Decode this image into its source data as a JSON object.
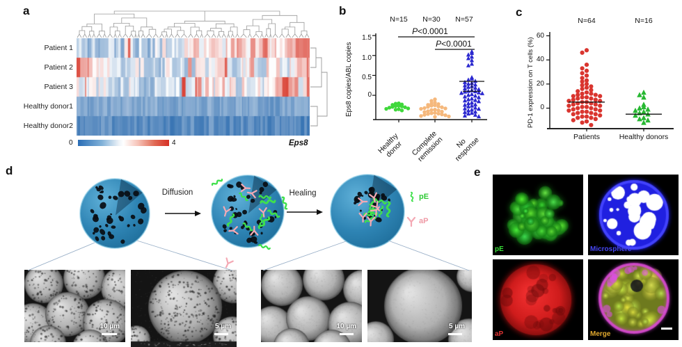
{
  "panels": {
    "a": "a",
    "b": "b",
    "c": "c",
    "d": "d",
    "e": "e"
  },
  "chart_data": [
    {
      "id": "a",
      "type": "heatmap",
      "rows": [
        "Patient 1",
        "Patient 2",
        "Patient 3",
        "Healthy donor1",
        "Healthy donor2"
      ],
      "n_columns": 190,
      "value_range": [
        0,
        4
      ],
      "colorbar": {
        "min_label": "0",
        "max_label": "4",
        "colors": [
          "#1a5fa8",
          "#ffffff",
          "#d62e20"
        ]
      },
      "gene_label": "Eps8",
      "row_profiles": [
        [
          1.4,
          1.2,
          1.5,
          1.3,
          1.6,
          1.4,
          1.5,
          1.7,
          1.6,
          1.9,
          2.4,
          2.7,
          2.3,
          2.8,
          2.5,
          3.0,
          2.2,
          2.6,
          3.3,
          3.9
        ],
        [
          3.5,
          2.6,
          1.8,
          2.2,
          1.5,
          1.7,
          1.4,
          1.6,
          1.8,
          1.5,
          2.1,
          1.7,
          2.3,
          1.6,
          2.5,
          1.8,
          2.2,
          1.5,
          3.1,
          2.9
        ],
        [
          1.9,
          1.6,
          1.8,
          1.5,
          1.7,
          1.6,
          1.4,
          1.7,
          1.5,
          1.6,
          2.3,
          2.0,
          2.4,
          1.8,
          2.2,
          1.9,
          1.7,
          3.8,
          2.1,
          3.2
        ],
        [
          0.9,
          0.8,
          1.0,
          0.85,
          0.95,
          0.9,
          1.0,
          0.8,
          0.9,
          0.85,
          0.95,
          0.9,
          0.8,
          1.0,
          0.85,
          0.9,
          0.8,
          0.95,
          0.9,
          0.75
        ],
        [
          0.6,
          0.5,
          0.65,
          0.55,
          0.6,
          0.5,
          0.6,
          0.55,
          0.5,
          0.6,
          0.55,
          0.65,
          0.5,
          0.6,
          0.55,
          0.5,
          0.6,
          0.5,
          0.55,
          0.45
        ]
      ]
    },
    {
      "id": "b",
      "type": "scatter",
      "ylabel": "Eps8 copies/ABL copies",
      "ylim": [
        -0.61,
        1.52
      ],
      "ytick_labels": [
        "1.5",
        "1.0",
        "0.5",
        "0"
      ],
      "ytick_values": [
        1.5,
        1.0,
        0.5,
        0
      ],
      "n_labels": [
        "N=15",
        "N=30",
        "N=57"
      ],
      "p_annotations": [
        {
          "p": "P",
          "text": "<0.0001",
          "from": 0,
          "to": 2
        },
        {
          "p": "P",
          "text": "<0.0001",
          "from": 1,
          "to": 2
        }
      ],
      "categories": [
        "Healthy\ndonor",
        "Complete\nremission",
        "No\nresponse"
      ],
      "series": [
        {
          "name": "Healthy donor",
          "color": "#3fd83b",
          "marker": "circle",
          "values": [
            -0.2,
            -0.26,
            -0.31,
            -0.36,
            -0.23,
            -0.29,
            -0.34,
            -0.21,
            -0.27,
            -0.33,
            -0.38,
            -0.24,
            -0.3,
            -0.35,
            -0.28
          ]
        },
        {
          "name": "Complete remission",
          "color": "#f5b87c",
          "marker": "circle",
          "values": [
            -0.1,
            -0.14,
            -0.18,
            -0.21,
            -0.24,
            -0.26,
            -0.28,
            -0.3,
            -0.32,
            -0.34,
            -0.36,
            -0.38,
            -0.4,
            -0.42,
            -0.44,
            -0.46,
            -0.48,
            -0.5,
            -0.52,
            -0.54,
            -0.25,
            -0.33,
            -0.41,
            -0.47,
            -0.53,
            -0.37,
            -0.29,
            -0.45,
            -0.22,
            -0.49
          ]
        },
        {
          "name": "No response",
          "color": "#2b28cf",
          "marker": "triangle",
          "values": [
            1.1,
            1.06,
            1.02,
            0.97,
            0.93,
            0.88,
            0.79,
            0.75,
            0.45,
            0.42,
            0.39,
            0.36,
            0.33,
            0.31,
            0.29,
            0.27,
            0.25,
            0.23,
            0.21,
            0.19,
            0.17,
            0.15,
            0.13,
            0.11,
            0.09,
            0.07,
            0.05,
            0.03,
            0.01,
            -0.01,
            -0.03,
            -0.05,
            -0.08,
            -0.1,
            -0.13,
            -0.15,
            -0.18,
            -0.2,
            -0.23,
            -0.26,
            -0.28,
            -0.31,
            -0.33,
            -0.36,
            -0.38,
            -0.41,
            -0.44,
            -0.46,
            -0.49,
            -0.51,
            -0.53,
            -0.24,
            -0.34,
            -0.12,
            0.1,
            0.06,
            -0.42
          ],
          "error_bar": {
            "mean": 0.1,
            "upper": 0.35
          }
        }
      ]
    },
    {
      "id": "c",
      "type": "scatter",
      "ylabel": "PD-1 expression on T cells (%)",
      "ylim": [
        -17,
        62
      ],
      "ytick_labels": [
        "60",
        "40",
        "20",
        "0"
      ],
      "ytick_values": [
        60,
        40,
        20,
        0
      ],
      "n_labels": [
        "N=64",
        "N=16"
      ],
      "categories": [
        "Patients",
        "Healthy donors"
      ],
      "series": [
        {
          "name": "Patients",
          "color": "#d9352f",
          "marker": "circle",
          "median": 5,
          "values": [
            48,
            46,
            36,
            33,
            31,
            29,
            27,
            25,
            23,
            22,
            20,
            19,
            18,
            17,
            16,
            15,
            14,
            13,
            12,
            12,
            11,
            11,
            10,
            10,
            9,
            9,
            8,
            8,
            7,
            7,
            6,
            6,
            5,
            5,
            4,
            4,
            3,
            3,
            2,
            2,
            1,
            1,
            0,
            0,
            -1,
            -1,
            -2,
            -2,
            -3,
            -3,
            -4,
            -4,
            -5,
            -5,
            -6,
            -7,
            -7,
            -8,
            -8,
            -9,
            -10,
            -11,
            -12,
            -14
          ]
        },
        {
          "name": "Healthy donors",
          "color": "#27b832",
          "marker": "triangle",
          "median": -5,
          "values": [
            13,
            11,
            9,
            3,
            1,
            0,
            -1,
            -2,
            -3,
            -4,
            -5,
            -6,
            -8,
            -9,
            -10,
            -12
          ]
        }
      ]
    }
  ],
  "panel_d": {
    "arrows": [
      {
        "label": "Diffusion"
      },
      {
        "label": "Healing"
      }
    ],
    "legend": [
      {
        "label": "pE",
        "color": "#2fca35"
      },
      {
        "label": "aP",
        "color": "#ef9aa6"
      }
    ],
    "sem_images": [
      {
        "scale_label": "10 µm"
      },
      {
        "scale_label": "5 µm"
      },
      {
        "scale_label": "10 µm"
      },
      {
        "scale_label": "5 µm"
      }
    ]
  },
  "panel_e": {
    "images": [
      {
        "label": "pE",
        "label_color": "#38e038"
      },
      {
        "label": "Microsphere",
        "label_color": "#4646f0"
      },
      {
        "label": "aP",
        "label_color": "#e03434"
      },
      {
        "label": "Merge",
        "label_color": "#e0a82e"
      }
    ]
  }
}
